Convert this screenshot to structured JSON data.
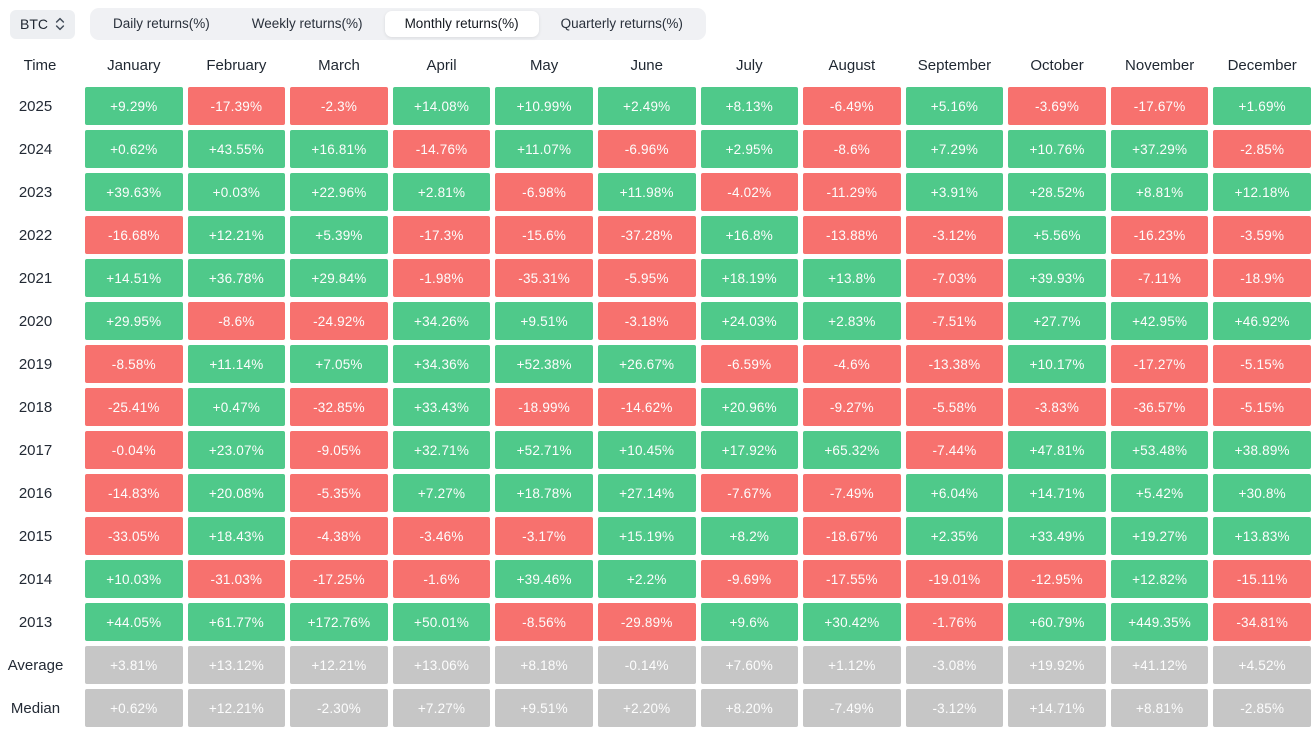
{
  "colors": {
    "positive": "#4fc98a",
    "negative": "#f7716e",
    "neutral": "#c6c6c6",
    "tabbar_bg": "#f0f1f4",
    "active_tab_bg": "#ffffff",
    "chip_bg": "#edeff2"
  },
  "symbol_selector": {
    "value": "BTC"
  },
  "tabs": [
    {
      "label": "Daily returns(%)",
      "active": false
    },
    {
      "label": "Weekly returns(%)",
      "active": false
    },
    {
      "label": "Monthly returns(%)",
      "active": true
    },
    {
      "label": "Quarterly returns(%)",
      "active": false
    }
  ],
  "chart_data": {
    "type": "heatmap",
    "title": "Monthly returns(%)",
    "row_header": "Time",
    "columns": [
      "January",
      "February",
      "March",
      "April",
      "May",
      "June",
      "July",
      "August",
      "September",
      "October",
      "November",
      "December"
    ],
    "rows": [
      {
        "label": "2025",
        "neutral": false,
        "values": [
          "+9.29%",
          "-17.39%",
          "-2.3%",
          "+14.08%",
          "+10.99%",
          "+2.49%",
          "+8.13%",
          "-6.49%",
          "+5.16%",
          "-3.69%",
          "-17.67%",
          "+1.69%"
        ]
      },
      {
        "label": "2024",
        "neutral": false,
        "values": [
          "+0.62%",
          "+43.55%",
          "+16.81%",
          "-14.76%",
          "+11.07%",
          "-6.96%",
          "+2.95%",
          "-8.6%",
          "+7.29%",
          "+10.76%",
          "+37.29%",
          "-2.85%"
        ]
      },
      {
        "label": "2023",
        "neutral": false,
        "values": [
          "+39.63%",
          "+0.03%",
          "+22.96%",
          "+2.81%",
          "-6.98%",
          "+11.98%",
          "-4.02%",
          "-11.29%",
          "+3.91%",
          "+28.52%",
          "+8.81%",
          "+12.18%"
        ]
      },
      {
        "label": "2022",
        "neutral": false,
        "values": [
          "-16.68%",
          "+12.21%",
          "+5.39%",
          "-17.3%",
          "-15.6%",
          "-37.28%",
          "+16.8%",
          "-13.88%",
          "-3.12%",
          "+5.56%",
          "-16.23%",
          "-3.59%"
        ]
      },
      {
        "label": "2021",
        "neutral": false,
        "values": [
          "+14.51%",
          "+36.78%",
          "+29.84%",
          "-1.98%",
          "-35.31%",
          "-5.95%",
          "+18.19%",
          "+13.8%",
          "-7.03%",
          "+39.93%",
          "-7.11%",
          "-18.9%"
        ]
      },
      {
        "label": "2020",
        "neutral": false,
        "values": [
          "+29.95%",
          "-8.6%",
          "-24.92%",
          "+34.26%",
          "+9.51%",
          "-3.18%",
          "+24.03%",
          "+2.83%",
          "-7.51%",
          "+27.7%",
          "+42.95%",
          "+46.92%"
        ]
      },
      {
        "label": "2019",
        "neutral": false,
        "values": [
          "-8.58%",
          "+11.14%",
          "+7.05%",
          "+34.36%",
          "+52.38%",
          "+26.67%",
          "-6.59%",
          "-4.6%",
          "-13.38%",
          "+10.17%",
          "-17.27%",
          "-5.15%"
        ]
      },
      {
        "label": "2018",
        "neutral": false,
        "values": [
          "-25.41%",
          "+0.47%",
          "-32.85%",
          "+33.43%",
          "-18.99%",
          "-14.62%",
          "+20.96%",
          "-9.27%",
          "-5.58%",
          "-3.83%",
          "-36.57%",
          "-5.15%"
        ]
      },
      {
        "label": "2017",
        "neutral": false,
        "values": [
          "-0.04%",
          "+23.07%",
          "-9.05%",
          "+32.71%",
          "+52.71%",
          "+10.45%",
          "+17.92%",
          "+65.32%",
          "-7.44%",
          "+47.81%",
          "+53.48%",
          "+38.89%"
        ]
      },
      {
        "label": "2016",
        "neutral": false,
        "values": [
          "-14.83%",
          "+20.08%",
          "-5.35%",
          "+7.27%",
          "+18.78%",
          "+27.14%",
          "-7.67%",
          "-7.49%",
          "+6.04%",
          "+14.71%",
          "+5.42%",
          "+30.8%"
        ]
      },
      {
        "label": "2015",
        "neutral": false,
        "values": [
          "-33.05%",
          "+18.43%",
          "-4.38%",
          "-3.46%",
          "-3.17%",
          "+15.19%",
          "+8.2%",
          "-18.67%",
          "+2.35%",
          "+33.49%",
          "+19.27%",
          "+13.83%"
        ]
      },
      {
        "label": "2014",
        "neutral": false,
        "values": [
          "+10.03%",
          "-31.03%",
          "-17.25%",
          "-1.6%",
          "+39.46%",
          "+2.2%",
          "-9.69%",
          "-17.55%",
          "-19.01%",
          "-12.95%",
          "+12.82%",
          "-15.11%"
        ]
      },
      {
        "label": "2013",
        "neutral": false,
        "values": [
          "+44.05%",
          "+61.77%",
          "+172.76%",
          "+50.01%",
          "-8.56%",
          "-29.89%",
          "+9.6%",
          "+30.42%",
          "-1.76%",
          "+60.79%",
          "+449.35%",
          "-34.81%"
        ]
      },
      {
        "label": "Average",
        "neutral": true,
        "values": [
          "+3.81%",
          "+13.12%",
          "+12.21%",
          "+13.06%",
          "+8.18%",
          "-0.14%",
          "+7.60%",
          "+1.12%",
          "-3.08%",
          "+19.92%",
          "+41.12%",
          "+4.52%"
        ]
      },
      {
        "label": "Median",
        "neutral": true,
        "values": [
          "+0.62%",
          "+12.21%",
          "-2.30%",
          "+7.27%",
          "+9.51%",
          "+2.20%",
          "+8.20%",
          "-7.49%",
          "-3.12%",
          "+14.71%",
          "+8.81%",
          "-2.85%"
        ]
      }
    ]
  }
}
